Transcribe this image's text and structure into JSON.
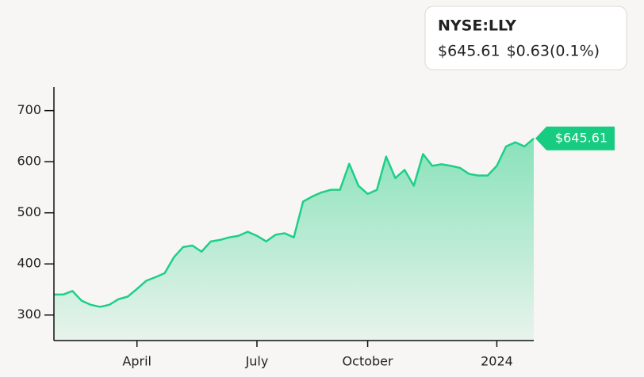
{
  "chart_data": {
    "type": "area",
    "ticker": "NYSE:LLY",
    "price": "$645.61",
    "change": "$0.63(0.1%)",
    "color": "#1ecf87",
    "change_color": "#2e8b3e",
    "categories": [
      null,
      null,
      null,
      null,
      null,
      null,
      null,
      null,
      null,
      "April",
      null,
      null,
      null,
      null,
      null,
      null,
      null,
      null,
      null,
      null,
      null,
      null,
      "July",
      null,
      null,
      null,
      null,
      null,
      null,
      null,
      null,
      null,
      null,
      null,
      "October",
      null,
      null,
      null,
      null,
      null,
      null,
      null,
      null,
      null,
      null,
      null,
      null,
      null,
      "2024",
      null,
      null,
      null,
      null
    ],
    "values": [
      340,
      340,
      347,
      328,
      320,
      316,
      320,
      331,
      336,
      351,
      367,
      374,
      382,
      413,
      433,
      436,
      424,
      444,
      447,
      452,
      455,
      463,
      455,
      444,
      457,
      460,
      452,
      522,
      532,
      540,
      545,
      545,
      596,
      553,
      537,
      545,
      610,
      568,
      584,
      553,
      615,
      592,
      595,
      592,
      588,
      576,
      573,
      573,
      592,
      630,
      638,
      630,
      645.61
    ],
    "value_labels": [
      null,
      null,
      null,
      null,
      null,
      null,
      null,
      null,
      null,
      null,
      null,
      null,
      null,
      null,
      null,
      null,
      null,
      null,
      null,
      null,
      null,
      null,
      null,
      null,
      null,
      null,
      null,
      null,
      null,
      null,
      null,
      null,
      null,
      null,
      null,
      null,
      null,
      null,
      null,
      null,
      null,
      null,
      null,
      null,
      null,
      null,
      null,
      null,
      null,
      null,
      null,
      null,
      "$645.61"
    ],
    "ylim": [
      250,
      746
    ],
    "yticks": [
      300,
      400,
      500,
      600,
      700
    ]
  }
}
